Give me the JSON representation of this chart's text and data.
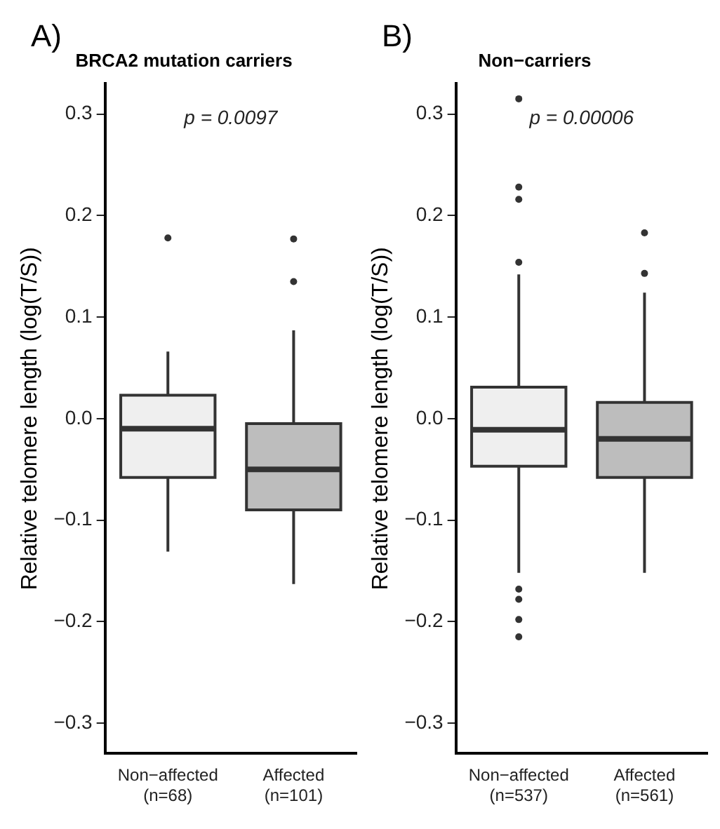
{
  "chart_data": [
    {
      "type": "box",
      "title": "BRCA2 mutation carriers",
      "ylabel": "Relative telomere length (log(T/S))",
      "annotations": [
        "A)",
        "p = 0.0097"
      ],
      "categories": [
        "Non−affected\n(n=68)",
        "Affected\n(n=101)"
      ],
      "colors": [
        "#efefef",
        "#bdbdbd"
      ],
      "boxes": [
        {
          "low": -0.131,
          "q1": -0.058,
          "median": -0.01,
          "q3": 0.023,
          "high": 0.066,
          "outliers": [
            0.178
          ]
        },
        {
          "low": -0.163,
          "q1": -0.09,
          "median": -0.05,
          "q3": -0.005,
          "high": 0.087,
          "outliers": [
            0.177,
            0.135
          ]
        }
      ],
      "ylim": [
        -0.33,
        0.33
      ],
      "yticks": [
        {
          "value": -0.3,
          "label": "−0.3"
        },
        {
          "value": -0.2,
          "label": "−0.2"
        },
        {
          "value": -0.1,
          "label": "−0.1"
        },
        {
          "value": 0,
          "label": "0.0"
        },
        {
          "value": 0.1,
          "label": "0.1"
        },
        {
          "value": 0.2,
          "label": "0.2"
        },
        {
          "value": 0.3,
          "label": "0.3"
        }
      ],
      "grid": false,
      "legend": false
    },
    {
      "type": "box",
      "title": "Non−carriers",
      "ylabel": "Relative telomere length (log(T/S))",
      "annotations": [
        "B)",
        "p = 0.00006"
      ],
      "categories": [
        "Non−affected\n(n=537)",
        "Affected\n(n=561)"
      ],
      "colors": [
        "#efefef",
        "#bdbdbd"
      ],
      "boxes": [
        {
          "low": -0.152,
          "q1": -0.047,
          "median": -0.011,
          "q3": 0.031,
          "high": 0.142,
          "outliers": [
            0.315,
            0.228,
            0.216,
            0.154,
            -0.168,
            -0.178,
            -0.198,
            -0.215
          ]
        },
        {
          "low": -0.152,
          "q1": -0.058,
          "median": -0.02,
          "q3": 0.016,
          "high": 0.124,
          "outliers": [
            0.183,
            0.143
          ]
        }
      ],
      "ylim": [
        -0.33,
        0.33
      ],
      "yticks": [
        {
          "value": -0.3,
          "label": "−0.3"
        },
        {
          "value": -0.2,
          "label": "−0.2"
        },
        {
          "value": -0.1,
          "label": "−0.1"
        },
        {
          "value": 0,
          "label": "0.0"
        },
        {
          "value": 0.1,
          "label": "0.1"
        },
        {
          "value": 0.2,
          "label": "0.2"
        },
        {
          "value": 0.3,
          "label": "0.3"
        }
      ],
      "grid": false,
      "legend": false
    }
  ]
}
